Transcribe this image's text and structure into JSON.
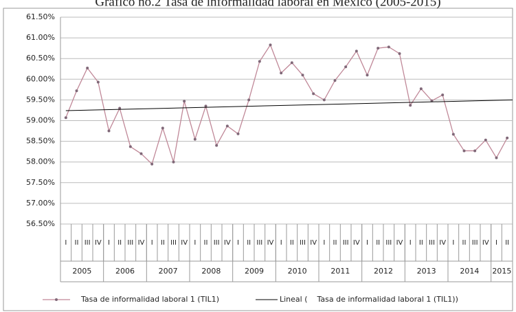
{
  "chart_data": {
    "type": "line",
    "title": "Gráfico no.2 Tasa de informalidad laboral en México (2005-2015)",
    "categories": [
      "I",
      "II",
      "III",
      "IV",
      "I",
      "II",
      "III",
      "IV",
      "I",
      "II",
      "III",
      "IV",
      "I",
      "II",
      "III",
      "IV",
      "I",
      "II",
      "III",
      "IV",
      "I",
      "II",
      "III",
      "IV",
      "I",
      "II",
      "III",
      "IV",
      "I",
      "II",
      "III",
      "IV",
      "I",
      "II",
      "III",
      "IV",
      "I",
      "II",
      "III",
      "IV",
      "I",
      "II"
    ],
    "years": [
      "2005",
      "2006",
      "2007",
      "2008",
      "2009",
      "2010",
      "2011",
      "2012",
      "2013",
      "2014",
      "2015"
    ],
    "series": [
      {
        "name": "Tasa de informalidad laboral 1 (TIL1)",
        "color": "#c08898",
        "values": [
          59.07,
          59.72,
          60.27,
          59.93,
          58.75,
          59.3,
          58.37,
          58.2,
          57.95,
          58.82,
          58.0,
          59.47,
          58.55,
          59.35,
          58.4,
          58.87,
          58.68,
          59.5,
          60.43,
          60.83,
          60.15,
          60.4,
          60.1,
          59.65,
          59.5,
          59.97,
          60.3,
          60.68,
          60.1,
          60.75,
          60.78,
          60.62,
          59.37,
          59.77,
          59.48,
          59.62,
          58.67,
          58.27,
          58.27,
          58.53,
          58.1,
          58.58
        ]
      }
    ],
    "trendline": {
      "name": "Lineal (    Tasa de informalidad laboral 1 (TIL1))",
      "color": "#000000",
      "start": 59.24,
      "end": 59.5
    },
    "ylim": [
      56.5,
      61.5
    ],
    "yticks": [
      {
        "value": 56.5,
        "label": "56.50%"
      },
      {
        "value": 57,
        "label": "57.00%"
      },
      {
        "value": 57.5,
        "label": "57.50%"
      },
      {
        "value": 58,
        "label": "58.00%"
      },
      {
        "value": 58.5,
        "label": "58.50%"
      },
      {
        "value": 59,
        "label": "59.00%"
      },
      {
        "value": 59.5,
        "label": "59.50%"
      },
      {
        "value": 60,
        "label": "60.00%"
      },
      {
        "value": 60.5,
        "label": "60.50%"
      },
      {
        "value": 61,
        "label": "61.00%"
      },
      {
        "value": 61.5,
        "label": "61.50%"
      }
    ],
    "grid": true
  }
}
